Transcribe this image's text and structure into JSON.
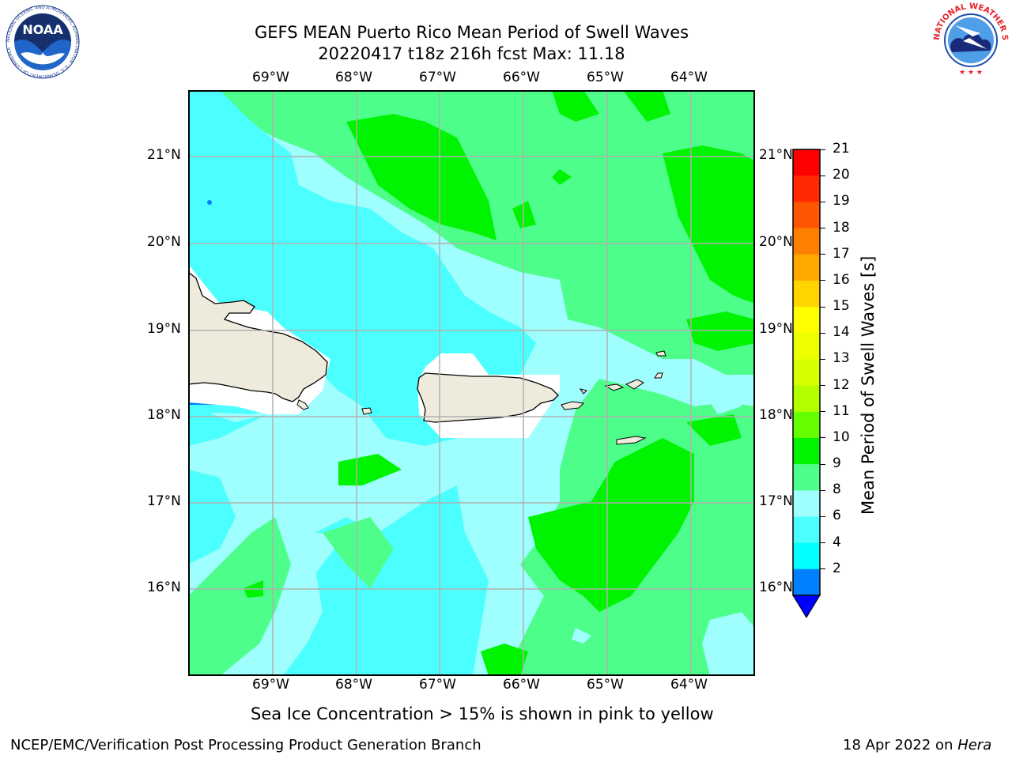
{
  "header": {
    "title_line1": "GEFS MEAN Puerto Rico Mean Period of Swell Waves",
    "title_line2": "20220417 t18z 216h fcst   Max: 11.18"
  },
  "logos": {
    "left": {
      "icon": "noaa-logo",
      "text": "NOAA",
      "ring_text": "NATIONAL OCEANIC AND ATMOSPHERIC ADMINISTRATION · U.S. DEPARTMENT OF COMMERCE"
    },
    "right": {
      "icon": "nws-logo",
      "ring_text": "NATIONAL WEATHER SERVICE"
    }
  },
  "map": {
    "lon_labels": [
      "69°W",
      "68°W",
      "67°W",
      "66°W",
      "65°W",
      "64°W"
    ],
    "lat_labels": [
      "21°N",
      "20°N",
      "19°N",
      "18°N",
      "17°N",
      "16°N"
    ],
    "extent": {
      "lon": [
        -70.0,
        -63.25
      ],
      "lat": [
        15.0,
        21.75
      ]
    },
    "land_color": "#eeebdc",
    "ocean_colors": {
      "cyan": "#4cffff",
      "light_cyan": "#9ffefe",
      "light_green": "#4dff8a",
      "green": "#00f300"
    }
  },
  "colorbar": {
    "label": "Mean Period of Swell Waves [s]",
    "ticks": [
      "21",
      "20",
      "19",
      "18",
      "17",
      "16",
      "15",
      "14",
      "13",
      "12",
      "11",
      "10",
      "9",
      "8",
      "6",
      "4",
      "2"
    ],
    "colors_top_to_bottom": [
      "#ff0000",
      "#ff2800",
      "#ff5500",
      "#ff8000",
      "#ffa800",
      "#ffd500",
      "#ffff00",
      "#eeff00",
      "#d6ff00",
      "#b3ff00",
      "#66ff00",
      "#00f300",
      "#4dff8a",
      "#9ffefe",
      "#4cffff",
      "#00ffff",
      "#0080ff"
    ],
    "extend_color": "#0000ff"
  },
  "notes": {
    "sea_ice": "Sea Ice Concentration > 15% is shown in pink to yellow"
  },
  "footer": {
    "left": "NCEP/EMC/Verification Post Processing Product Generation Branch",
    "right_date": "18 Apr 2022 on",
    "right_host": "Hera"
  }
}
